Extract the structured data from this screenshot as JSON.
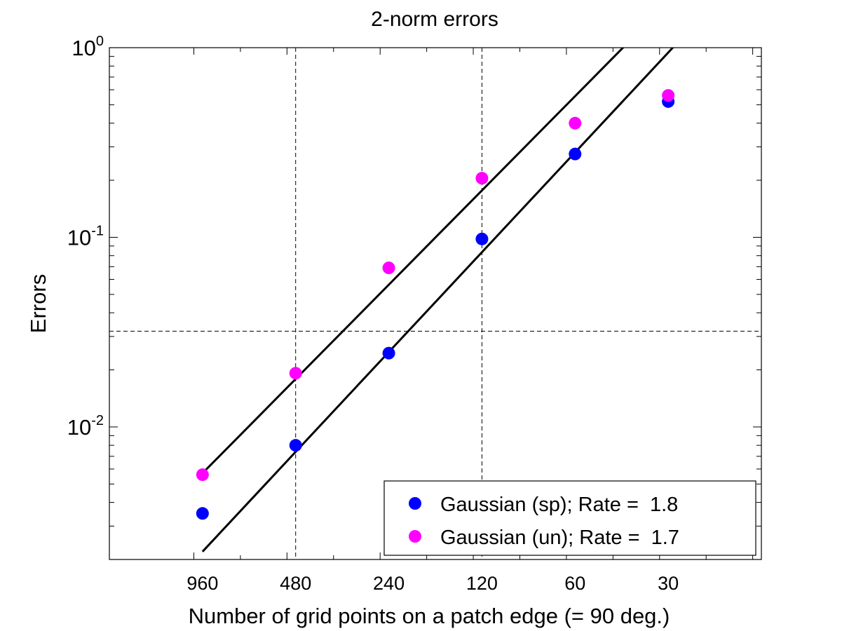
{
  "chart_data": {
    "type": "scatter",
    "title": "2-norm errors",
    "xlabel": "Number of grid points on a patch edge (= 90 deg.)",
    "ylabel": "Errors",
    "x_scale": "log2-reversed",
    "y_scale": "log",
    "xlim": [
      1920,
      15
    ],
    "ylim": [
      0.002,
      1.0
    ],
    "x_ticks": [
      960,
      480,
      240,
      120,
      60,
      30
    ],
    "x_tick_labels": [
      "960",
      "480",
      "240",
      "120",
      "60",
      "30"
    ],
    "y_tick_labels": [
      {
        "value": 1.0,
        "base": "10",
        "exp": "0"
      },
      {
        "value": 0.1,
        "base": "10",
        "exp": "-1"
      },
      {
        "value": 0.01,
        "base": "10",
        "exp": "-2"
      }
    ],
    "grid": {
      "x": [
        480,
        120
      ],
      "y": [
        0.032
      ],
      "style": "dashed"
    },
    "legend": {
      "position": "bottom-right"
    },
    "series": [
      {
        "name": "Gaussian (sp); Rate =  1.8",
        "color": "#0000ff",
        "x": [
          960,
          480,
          240,
          120,
          60,
          30
        ],
        "y": [
          0.0035,
          0.008,
          0.0245,
          0.098,
          0.275,
          0.52
        ]
      },
      {
        "name": "Gaussian (un); Rate =  1.7",
        "color": "#ff00ff",
        "x": [
          960,
          480,
          240,
          120,
          60,
          30
        ],
        "y": [
          0.0056,
          0.0192,
          0.069,
          0.205,
          0.4,
          0.56
        ]
      }
    ],
    "fit_lines": [
      {
        "color": "#000000",
        "x": [
          960,
          42
        ],
        "y": [
          0.0057,
          1.0
        ]
      },
      {
        "color": "#000000",
        "x": [
          960,
          29
        ],
        "y": [
          0.0022,
          1.0
        ]
      }
    ]
  }
}
